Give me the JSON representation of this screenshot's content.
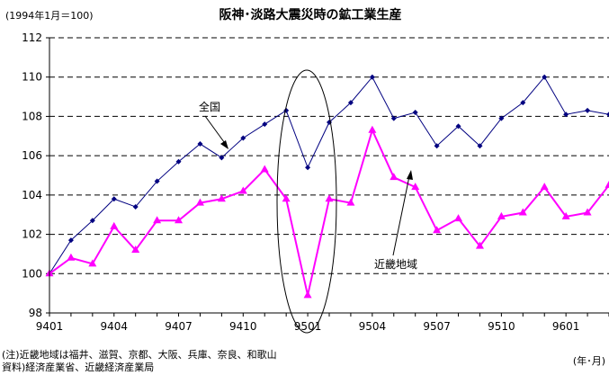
{
  "chart_data": {
    "type": "line",
    "title": "阪神･淡路大震災時の鉱工業生産",
    "subtitle": "(1994年1月＝100)",
    "xlabel": "(年･月)",
    "ylabel": "",
    "ylim": [
      98,
      112
    ],
    "yticks": [
      98,
      100,
      102,
      104,
      106,
      108,
      110,
      112
    ],
    "xtick_labels": [
      "9401",
      "9404",
      "9407",
      "9410",
      "9501",
      "9504",
      "9507",
      "9510",
      "9601"
    ],
    "grid": true,
    "series": [
      {
        "name": "全国",
        "color": "#000080",
        "marker": "diamond",
        "values": [
          100.0,
          101.7,
          102.7,
          103.8,
          103.4,
          104.7,
          105.7,
          106.6,
          105.9,
          106.9,
          107.6,
          108.3,
          105.4,
          107.7,
          108.7,
          110.0,
          107.9,
          108.2,
          106.5,
          107.5,
          106.5,
          107.9,
          108.7,
          110.0,
          108.1,
          108.3,
          108.1
        ]
      },
      {
        "name": "近畿地域",
        "color": "#ff00ff",
        "marker": "triangle",
        "values": [
          100.0,
          100.8,
          100.5,
          102.4,
          101.2,
          102.7,
          102.7,
          103.6,
          103.8,
          104.2,
          105.3,
          103.8,
          98.9,
          103.8,
          103.6,
          107.3,
          104.9,
          104.4,
          102.2,
          102.8,
          101.4,
          102.9,
          103.1,
          104.4,
          102.9,
          103.1,
          104.5
        ]
      }
    ]
  },
  "notes": {
    "note1": "(注)近畿地域は福井、滋賀、京都、大阪、兵庫、奈良、和歌山",
    "note2": "資料)経済産業省、近畿経済産業局"
  }
}
